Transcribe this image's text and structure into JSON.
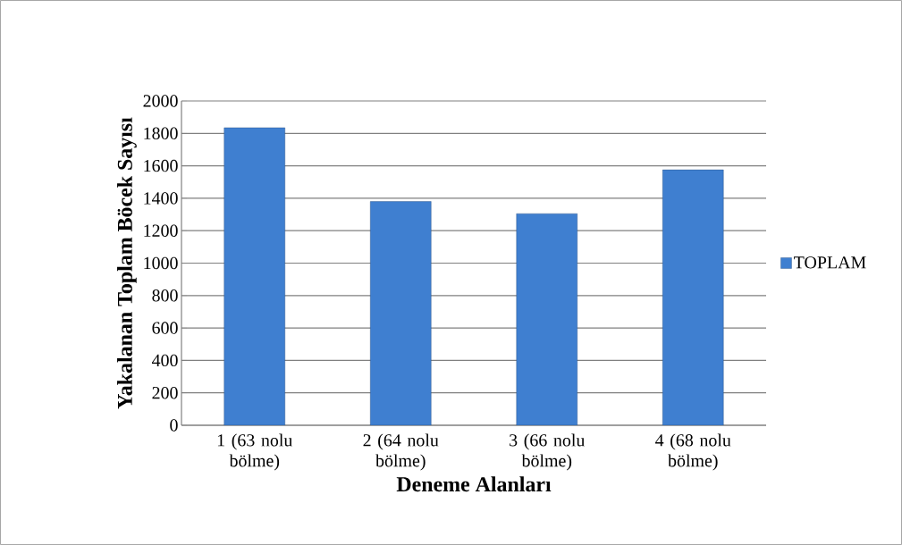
{
  "chart_data": {
    "type": "bar",
    "xlabel": "Deneme Alanları",
    "ylabel": "Yakalanan Toplam Böcek Sayısı",
    "categories": [
      "1 (63 nolu bölme)",
      "2 (64 nolu bölme)",
      "3 (66 nolu bölme)",
      "4 (68 nolu bölme)"
    ],
    "series": [
      {
        "name": "TOPLAM",
        "color": "#3f7fd0",
        "values": [
          1835,
          1380,
          1305,
          1575
        ]
      }
    ],
    "ylim": [
      0,
      2000
    ],
    "yticks": [
      0,
      200,
      400,
      600,
      800,
      1000,
      1200,
      1400,
      1600,
      1800,
      2000
    ],
    "grid": "y",
    "legend": "right"
  }
}
